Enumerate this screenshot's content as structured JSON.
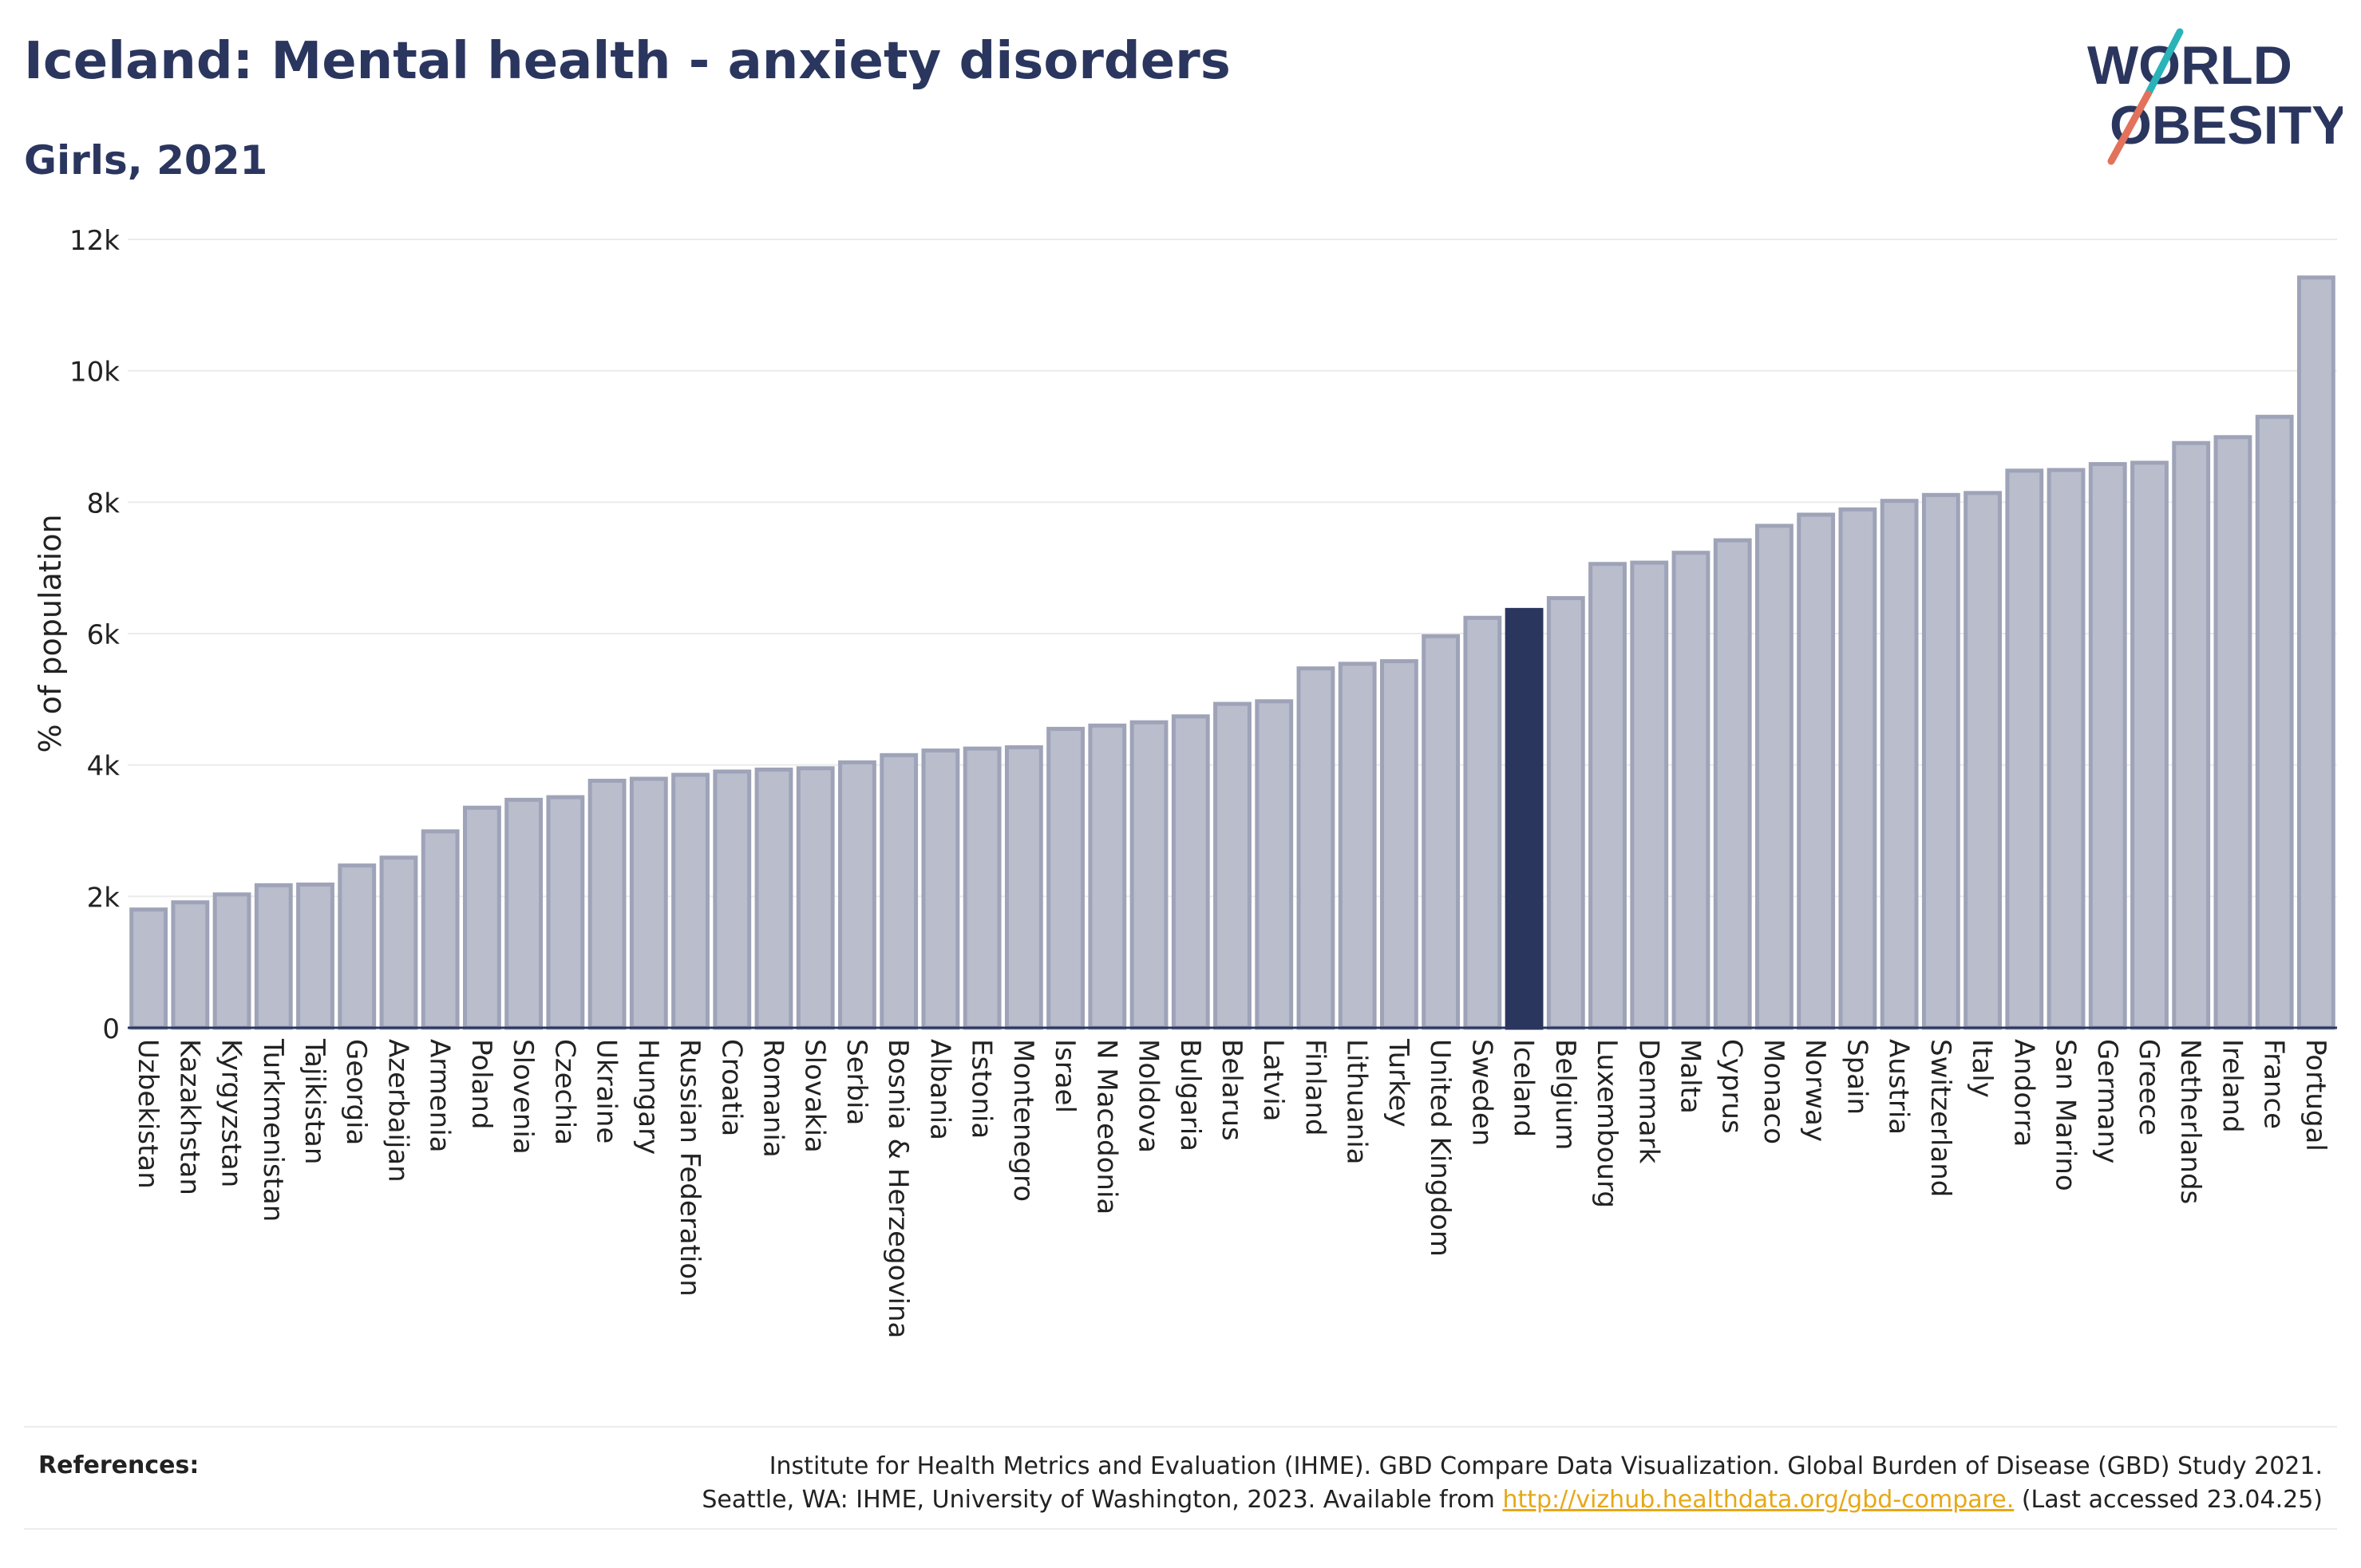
{
  "title": "Iceland: Mental health - anxiety disorders",
  "subtitle": "Girls, 2021",
  "logo": {
    "line1": "WORLD",
    "line2": "OBESITY",
    "accent_teal": "#2ab3b8",
    "accent_red": "#e2725b",
    "brand": "#2b365f"
  },
  "references": {
    "label": "References:",
    "line1": "Institute for Health Metrics and Evaluation (IHME). GBD Compare Data Visualization. Global Burden of Disease (GBD) Study 2021.",
    "line2_prefix": "Seattle, WA: IHME, University of Washington, 2023. Available from",
    "link": "http://vizhub.healthdata.org/gbd-compare.",
    "line2_suffix": "(Last accessed 23.04.25)"
  },
  "chart_data": {
    "type": "bar",
    "ylabel": "% of population",
    "ylim": [
      0,
      12000
    ],
    "yticks": [
      0,
      2000,
      4000,
      6000,
      8000,
      10000,
      12000
    ],
    "ytick_labels": [
      "0",
      "2k",
      "4k",
      "6k",
      "8k",
      "10k",
      "12k"
    ],
    "highlight": "Iceland",
    "colors": {
      "bar": "#b9bdcc",
      "bar_border": "#9ea3b8",
      "highlight": "#2b365f",
      "grid": "#ebebeb"
    },
    "categories": [
      "Uzbekistan",
      "Kazakhstan",
      "Kyrgyzstan",
      "Turkmenistan",
      "Tajikistan",
      "Georgia",
      "Azerbaijan",
      "Armenia",
      "Poland",
      "Slovenia",
      "Czechia",
      "Ukraine",
      "Hungary",
      "Russian Federation",
      "Croatia",
      "Romania",
      "Slovakia",
      "Serbia",
      "Bosnia & Herzegovina",
      "Albania",
      "Estonia",
      "Montenegro",
      "Israel",
      "N Macedonia",
      "Moldova",
      "Bulgaria",
      "Belarus",
      "Latvia",
      "Finland",
      "Lithuania",
      "Turkey",
      "United Kingdom",
      "Sweden",
      "Iceland",
      "Belgium",
      "Luxembourg",
      "Denmark",
      "Malta",
      "Cyprus",
      "Monaco",
      "Norway",
      "Spain",
      "Austria",
      "Switzerland",
      "Italy",
      "Andorra",
      "San Marino",
      "Germany",
      "Greece",
      "Netherlands",
      "Ireland",
      "France",
      "Portugal"
    ],
    "values": [
      1800,
      1910,
      2030,
      2170,
      2180,
      2470,
      2590,
      2990,
      3350,
      3470,
      3510,
      3760,
      3790,
      3850,
      3900,
      3930,
      3950,
      4040,
      4150,
      4220,
      4250,
      4270,
      4550,
      4600,
      4650,
      4740,
      4930,
      4970,
      5470,
      5540,
      5580,
      5960,
      6240,
      6360,
      6540,
      7060,
      7080,
      7230,
      7420,
      7640,
      7810,
      7890,
      8020,
      8110,
      8140,
      8480,
      8490,
      8580,
      8600,
      8900,
      8990,
      9300,
      11420
    ]
  }
}
